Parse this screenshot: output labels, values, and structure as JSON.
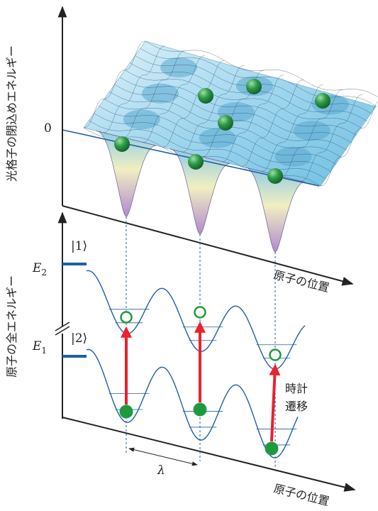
{
  "upper_panel": {
    "y_label": "光格子の閉込めエネルギー",
    "zero_label": "0",
    "x_label": "原子の位置"
  },
  "lower_panel": {
    "y_label": "原子の全エネルギー",
    "x_label": "原子の位置",
    "levels": [
      {
        "symbol": "E",
        "subscript": "2",
        "state": "|1⟩"
      },
      {
        "symbol": "E",
        "subscript": "1",
        "state": "|2⟩"
      }
    ],
    "transition_label": [
      "時計",
      "遷移"
    ],
    "wavelength_label": "λ"
  }
}
